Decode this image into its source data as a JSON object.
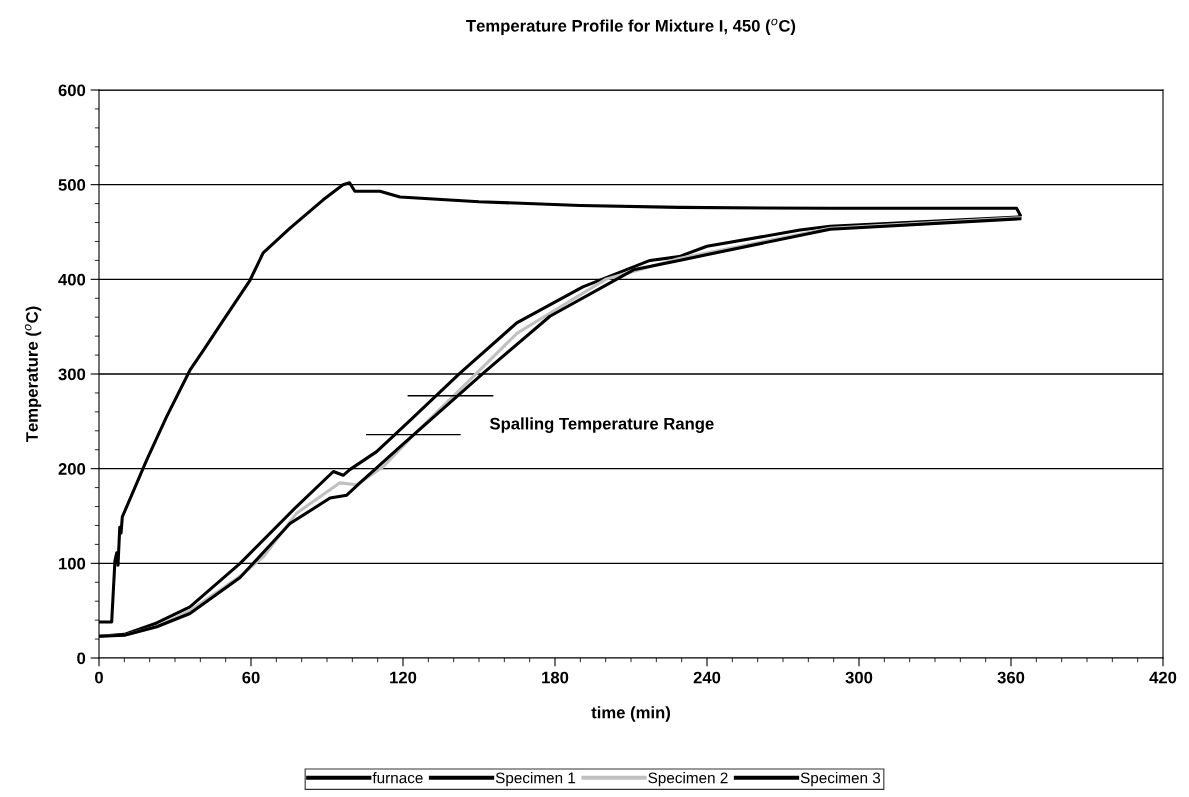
{
  "chart_data": {
    "type": "line",
    "title": "Temperature Profile for Mixture I, 450 ($^{o}$C)",
    "xlabel": "time (min)",
    "ylabel": "Temperature ($^{o}$C)",
    "xlim": [
      0,
      420
    ],
    "ylim": [
      0,
      600
    ],
    "xticks": [
      0,
      {
        "value": 10,
        "label": null
      },
      {
        "value": 20,
        "label": null
      },
      {
        "value": 30,
        "label": null
      },
      {
        "value": 40,
        "label": null
      },
      {
        "value": 50,
        "label": null
      },
      60,
      {
        "value": 70,
        "label": null
      },
      {
        "value": 80,
        "label": null
      },
      {
        "value": 90,
        "label": null
      },
      {
        "value": 100,
        "label": null
      },
      {
        "value": 110,
        "label": null
      },
      120,
      {
        "value": 130,
        "label": null
      },
      {
        "value": 140,
        "label": null
      },
      {
        "value": 150,
        "label": null
      },
      {
        "value": 160,
        "label": null
      },
      {
        "value": 170,
        "label": null
      },
      180,
      {
        "value": 190,
        "label": null
      },
      {
        "value": 200,
        "label": null
      },
      {
        "value": 210,
        "label": null
      },
      {
        "value": 220,
        "label": null
      },
      {
        "value": 230,
        "label": null
      },
      240,
      {
        "value": 250,
        "label": null
      },
      {
        "value": 260,
        "label": null
      },
      {
        "value": 270,
        "label": null
      },
      {
        "value": 280,
        "label": null
      },
      {
        "value": 290,
        "label": null
      },
      300,
      {
        "value": 310,
        "label": null
      },
      {
        "value": 320,
        "label": null
      },
      {
        "value": 330,
        "label": null
      },
      {
        "value": 340,
        "label": null
      },
      {
        "value": 350,
        "label": null
      },
      360,
      {
        "value": 370,
        "label": null
      },
      {
        "value": 380,
        "label": null
      },
      {
        "value": 390,
        "label": null
      },
      {
        "value": 400,
        "label": null
      },
      {
        "value": 410,
        "label": null
      },
      420
    ],
    "yticks": [
      0,
      {
        "value": 20,
        "label": null
      },
      {
        "value": 40,
        "label": null
      },
      {
        "value": 60,
        "label": null
      },
      {
        "value": 80,
        "label": null
      },
      100,
      {
        "value": 120,
        "label": null
      },
      {
        "value": 140,
        "label": null
      },
      {
        "value": 160,
        "label": null
      },
      {
        "value": 180,
        "label": null
      },
      200,
      {
        "value": 220,
        "label": null
      },
      {
        "value": 240,
        "label": null
      },
      {
        "value": 260,
        "label": null
      },
      {
        "value": 280,
        "label": null
      },
      300,
      {
        "value": 320,
        "label": null
      },
      {
        "value": 340,
        "label": null
      },
      {
        "value": 360,
        "label": null
      },
      {
        "value": 380,
        "label": null
      },
      400,
      {
        "value": 420,
        "label": null
      },
      {
        "value": 440,
        "label": null
      },
      {
        "value": 460,
        "label": null
      },
      {
        "value": 480,
        "label": null
      },
      500,
      {
        "value": 520,
        "label": null
      },
      {
        "value": 540,
        "label": null
      },
      {
        "value": 560,
        "label": null
      },
      {
        "value": 580,
        "label": null
      },
      600
    ],
    "grid": "y",
    "legend": "bottom",
    "marker": "none",
    "line_style": "solid",
    "series": [
      {
        "name": "furnace",
        "color": "#000000",
        "x": [
          0,
          5,
          6.3,
          7,
          7.5,
          8.2,
          8.7,
          9.2,
          18.8,
          26.7,
          35.9,
          41.2,
          49.1,
          59.6,
          64.8,
          75.4,
          88.5,
          96.3,
          98.9,
          101,
          110.9,
          118.8,
          150,
          190,
          229,
          288.6,
          362.2,
          363.6
        ],
        "values": [
          38,
          38,
          103,
          111,
          98,
          138,
          132,
          149,
          209,
          255,
          304,
          325,
          357,
          399,
          428,
          454,
          484,
          500,
          502,
          493,
          493,
          487,
          482,
          478,
          476,
          475,
          475,
          468
        ]
      },
      {
        "name": "Specimen 1",
        "color": "#000000",
        "x": [
          0,
          10,
          22.8,
          35.9,
          55.7,
          78,
          92.5,
          96.4,
          99,
          109.6,
          122.8,
          142.5,
          164.9,
          191,
          217.5,
          229,
          240,
          276.7,
          288.6,
          363.5
        ],
        "values": [
          23,
          25,
          37,
          54,
          100,
          160,
          197,
          193,
          199,
          218,
          251,
          301,
          354,
          392,
          420,
          424,
          435,
          452,
          456,
          466
        ]
      },
      {
        "name": "Specimen 2",
        "color": "#c0c0c0",
        "x": [
          0,
          10,
          22.8,
          35.9,
          55,
          64.9,
          78,
          95.1,
          101.7,
          112.2,
          125.4,
          145,
          165,
          200,
          229,
          288.6,
          363.5
        ],
        "values": [
          23,
          24,
          33,
          50,
          85,
          107,
          153,
          185,
          183,
          202,
          239,
          290,
          343,
          400,
          422,
          454,
          465
        ]
      },
      {
        "name": "Specimen 3",
        "color": "#000000",
        "x": [
          0,
          10,
          22.8,
          35.9,
          55.7,
          75.4,
          91.2,
          97.8,
          103,
          118.8,
          151.7,
          178,
          211,
          229,
          288.6,
          363.5
        ],
        "values": [
          23,
          24,
          33,
          47,
          85,
          142,
          169,
          172,
          185,
          223,
          301,
          361,
          410,
          420,
          453,
          464
        ]
      },
      {
        "color": "#000000",
        "x": [
          122.1,
          155.4
        ],
        "values": [
          277,
          277
        ]
      },
      {
        "color": "#000000",
        "x": [
          105.7,
          142.5
        ],
        "values": [
          236,
          236
        ]
      }
    ],
    "annotations": [
      "Spalling Temperature Range"
    ]
  }
}
